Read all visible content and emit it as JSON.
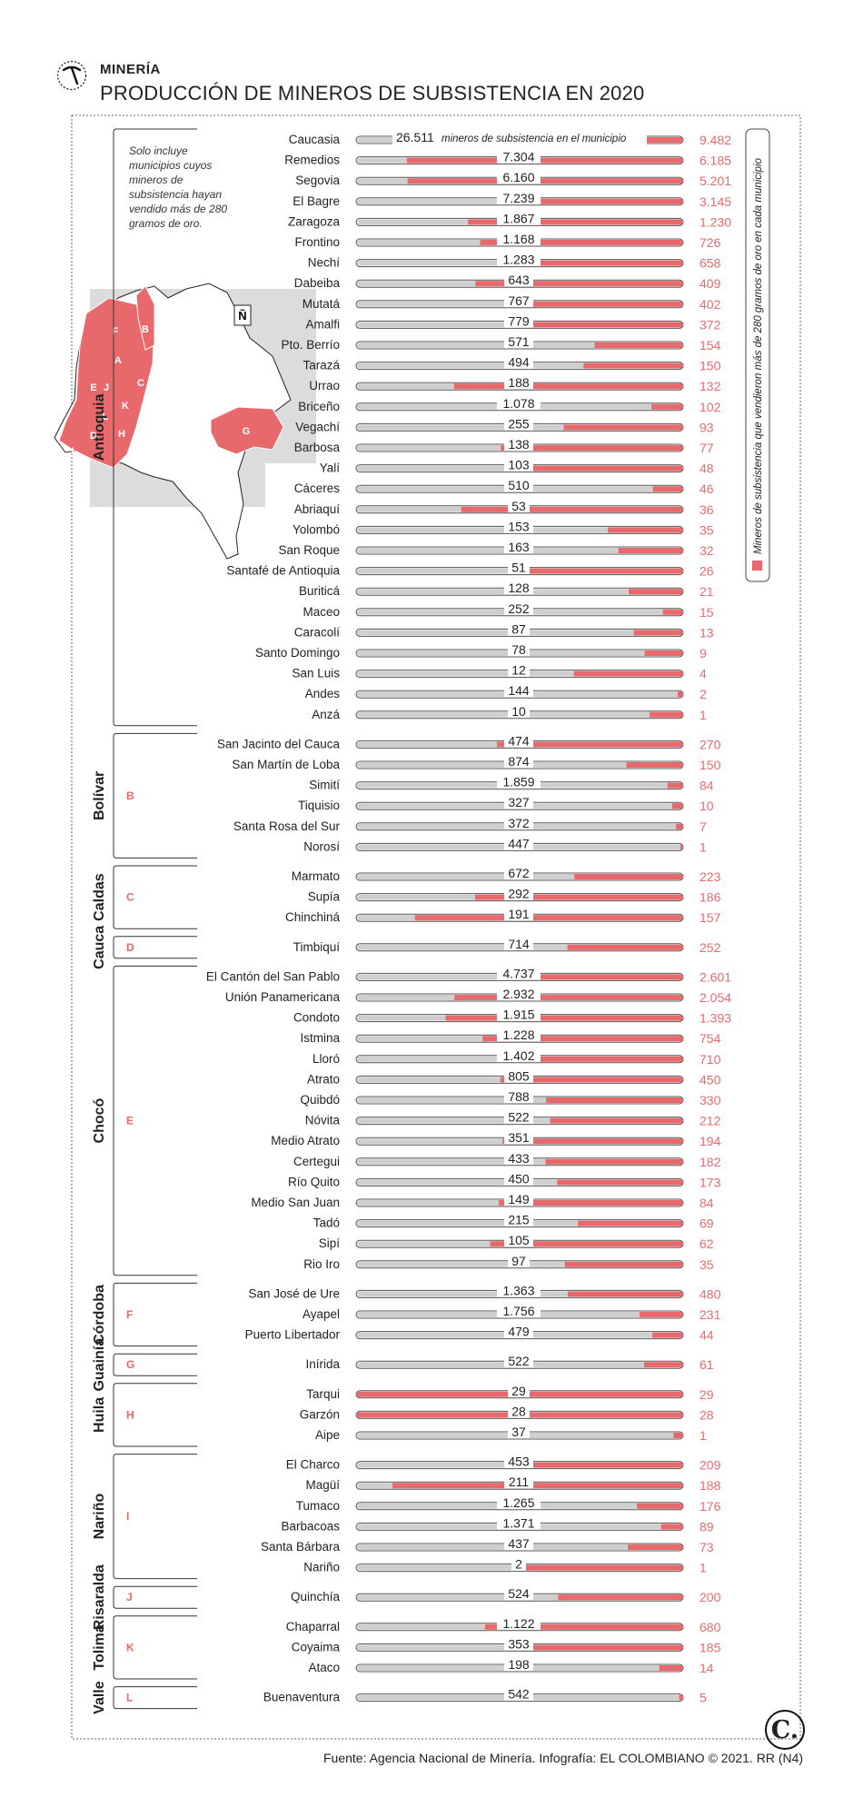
{
  "header": {
    "kicker": "MINERÍA",
    "title": "PRODUCCIÓN DE MINEROS DE SUBSISTENCIA EN 2020",
    "icon": "pickaxe-icon"
  },
  "note": [
    "Solo incluye",
    "municipios cuyos",
    "mineros de",
    "subsistencia hayan",
    "vendido más de 280",
    "gramos de oro."
  ],
  "legend_label": "Mineros de subsistencia que vendieron más de 280 gramos de oro en cada municipio",
  "first_row_note": "mineros de subsistencia en el municipio",
  "compass": "Ñ",
  "footer": "Fuente: Agencia Nacional de Minería. Infografía: EL COLOMBIANO © 2021. RR (N4)",
  "logo": "C.",
  "colors": {
    "accent": "#e8696b",
    "bar_gray": "#cfcfcf",
    "text": "#222222"
  },
  "chart_data": {
    "type": "bar",
    "departments": [
      {
        "name": "Antioquia",
        "code": "A",
        "municipalities": [
          {
            "name": "Caucasia",
            "total": "26.511",
            "over280": "9.482"
          },
          {
            "name": "Remedios",
            "total": "7.304",
            "over280": "6.185"
          },
          {
            "name": "Segovia",
            "total": "6.160",
            "over280": "5.201"
          },
          {
            "name": "El Bagre",
            "total": "7.239",
            "over280": "3.145"
          },
          {
            "name": "Zaragoza",
            "total": "1.867",
            "over280": "1.230"
          },
          {
            "name": "Frontino",
            "total": "1.168",
            "over280": "726"
          },
          {
            "name": "Nechí",
            "total": "1.283",
            "over280": "658"
          },
          {
            "name": "Dabeiba",
            "total": "643",
            "over280": "409"
          },
          {
            "name": "Mutatá",
            "total": "767",
            "over280": "402"
          },
          {
            "name": "Amalfi",
            "total": "779",
            "over280": "372"
          },
          {
            "name": "Pto. Berrío",
            "total": "571",
            "over280": "154"
          },
          {
            "name": "Tarazá",
            "total": "494",
            "over280": "150"
          },
          {
            "name": "Urrao",
            "total": "188",
            "over280": "132"
          },
          {
            "name": "Briceño",
            "total": "1.078",
            "over280": "102"
          },
          {
            "name": "Vegachí",
            "total": "255",
            "over280": "93"
          },
          {
            "name": "Barbosa",
            "total": "138",
            "over280": "77"
          },
          {
            "name": "Yalí",
            "total": "103",
            "over280": "48"
          },
          {
            "name": "Cáceres",
            "total": "510",
            "over280": "46"
          },
          {
            "name": "Abriaquí",
            "total": "53",
            "over280": "36"
          },
          {
            "name": "Yolombó",
            "total": "153",
            "over280": "35"
          },
          {
            "name": "San Roque",
            "total": "163",
            "over280": "32"
          },
          {
            "name": "Santafé de Antioquia",
            "total": "51",
            "over280": "26"
          },
          {
            "name": "Buriticá",
            "total": "128",
            "over280": "21"
          },
          {
            "name": "Maceo",
            "total": "252",
            "over280": "15"
          },
          {
            "name": "Caracolí",
            "total": "87",
            "over280": "13"
          },
          {
            "name": "Santo Domingo",
            "total": "78",
            "over280": "9"
          },
          {
            "name": "San Luis",
            "total": "12",
            "over280": "4"
          },
          {
            "name": "Andes",
            "total": "144",
            "over280": "2"
          },
          {
            "name": "Anzá",
            "total": "10",
            "over280": "1"
          }
        ]
      },
      {
        "name": "Bolívar",
        "code": "B",
        "municipalities": [
          {
            "name": "San Jacinto del Cauca",
            "total": "474",
            "over280": "270"
          },
          {
            "name": "San Martín de Loba",
            "total": "874",
            "over280": "150"
          },
          {
            "name": "Simití",
            "total": "1.859",
            "over280": "84"
          },
          {
            "name": "Tiquisio",
            "total": "327",
            "over280": "10"
          },
          {
            "name": "Santa Rosa del Sur",
            "total": "372",
            "over280": "7"
          },
          {
            "name": "Norosí",
            "total": "447",
            "over280": "1"
          }
        ]
      },
      {
        "name": "Caldas",
        "code": "C",
        "municipalities": [
          {
            "name": "Marmato",
            "total": "672",
            "over280": "223"
          },
          {
            "name": "Supía",
            "total": "292",
            "over280": "186"
          },
          {
            "name": "Chinchiná",
            "total": "191",
            "over280": "157"
          }
        ]
      },
      {
        "name": "Cauca",
        "code": "D",
        "municipalities": [
          {
            "name": "Timbiquí",
            "total": "714",
            "over280": "252"
          }
        ]
      },
      {
        "name": "Chocó",
        "code": "E",
        "municipalities": [
          {
            "name": "El Cantón del San Pablo",
            "total": "4.737",
            "over280": "2.601"
          },
          {
            "name": "Unión Panamericana",
            "total": "2.932",
            "over280": "2.054"
          },
          {
            "name": "Condoto",
            "total": "1.915",
            "over280": "1.393"
          },
          {
            "name": "Istmina",
            "total": "1.228",
            "over280": "754"
          },
          {
            "name": "Lloró",
            "total": "1.402",
            "over280": "710"
          },
          {
            "name": "Atrato",
            "total": "805",
            "over280": "450"
          },
          {
            "name": "Quibdó",
            "total": "788",
            "over280": "330"
          },
          {
            "name": "Nóvita",
            "total": "522",
            "over280": "212"
          },
          {
            "name": "Medio Atrato",
            "total": "351",
            "over280": "194"
          },
          {
            "name": "Certegui",
            "total": "433",
            "over280": "182"
          },
          {
            "name": "Río Quito",
            "total": "450",
            "over280": "173"
          },
          {
            "name": "Medio San Juan",
            "total": "149",
            "over280": "84"
          },
          {
            "name": "Tadó",
            "total": "215",
            "over280": "69"
          },
          {
            "name": "Sipí",
            "total": "105",
            "over280": "62"
          },
          {
            "name": "Rio Iro",
            "total": "97",
            "over280": "35"
          }
        ]
      },
      {
        "name": "Córdoba",
        "code": "F",
        "municipalities": [
          {
            "name": "San José de Ure",
            "total": "1.363",
            "over280": "480"
          },
          {
            "name": "Ayapel",
            "total": "1.756",
            "over280": "231"
          },
          {
            "name": "Puerto Libertador",
            "total": "479",
            "over280": "44"
          }
        ]
      },
      {
        "name": "Guainía",
        "code": "G",
        "municipalities": [
          {
            "name": "Inírida",
            "total": "522",
            "over280": "61"
          }
        ]
      },
      {
        "name": "Huila",
        "code": "H",
        "municipalities": [
          {
            "name": "Tarqui",
            "total": "29",
            "over280": "29"
          },
          {
            "name": "Garzón",
            "total": "28",
            "over280": "28"
          },
          {
            "name": "Aipe",
            "total": "37",
            "over280": "1"
          }
        ]
      },
      {
        "name": "Nariño",
        "code": "I",
        "municipalities": [
          {
            "name": "El Charco",
            "total": "453",
            "over280": "209"
          },
          {
            "name": "Magüí",
            "total": "211",
            "over280": "188"
          },
          {
            "name": "Tumaco",
            "total": "1.265",
            "over280": "176"
          },
          {
            "name": "Barbacoas",
            "total": "1.371",
            "over280": "89"
          },
          {
            "name": "Santa Bárbara",
            "total": "437",
            "over280": "73"
          },
          {
            "name": "Nariño",
            "total": "2",
            "over280": "1"
          }
        ]
      },
      {
        "name": "Risaralda",
        "code": "J",
        "municipalities": [
          {
            "name": "Quinchía",
            "total": "524",
            "over280": "200"
          }
        ]
      },
      {
        "name": "Tolima",
        "code": "K",
        "municipalities": [
          {
            "name": "Chaparral",
            "total": "1.122",
            "over280": "680"
          },
          {
            "name": "Coyaima",
            "total": "353",
            "over280": "185"
          },
          {
            "name": "Ataco",
            "total": "198",
            "over280": "14"
          }
        ]
      },
      {
        "name": "Valle",
        "code": "L",
        "municipalities": [
          {
            "name": "Buenaventura",
            "total": "542",
            "over280": "5"
          }
        ]
      }
    ]
  }
}
